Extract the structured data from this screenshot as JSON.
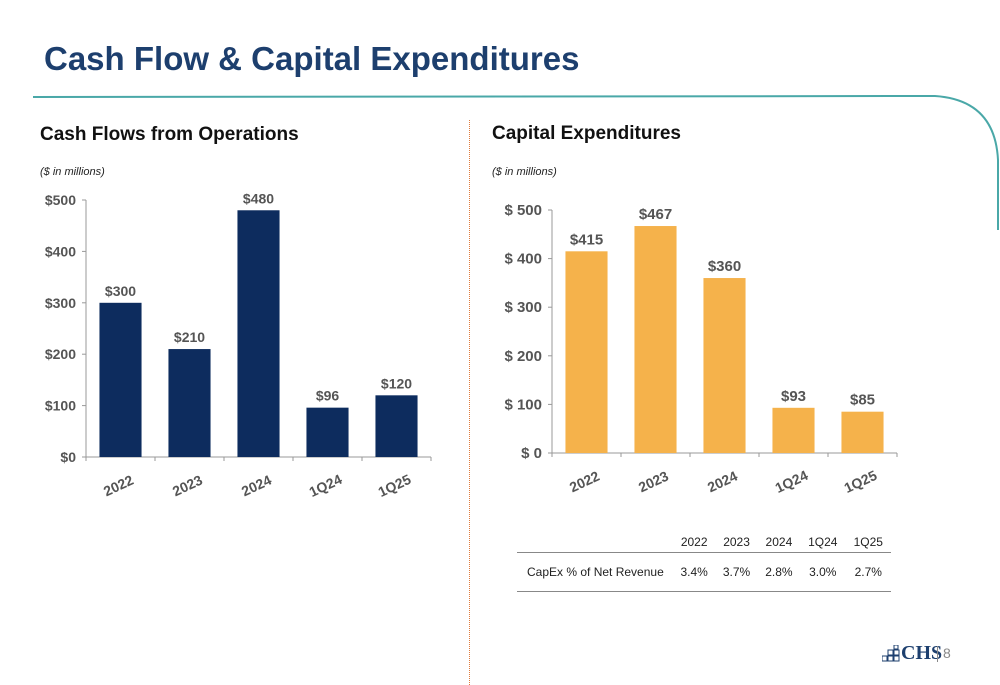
{
  "page": {
    "title": "Cash Flow & Capital Expenditures",
    "page_number": "8",
    "logo_text": "CHS",
    "colors": {
      "title": "#1d3f6e",
      "header_line": "#4aa8a8",
      "cashflow_bar": "#0d2c5e",
      "capex_bar": "#f5b24b"
    }
  },
  "chart_data": [
    {
      "type": "bar",
      "title": "Cash Flows from Operations",
      "subtitle": "($ in millions)",
      "categories": [
        "2022",
        "2023",
        "2024",
        "1Q24",
        "1Q25"
      ],
      "values": [
        300,
        210,
        480,
        96,
        120
      ],
      "value_labels": [
        "$300",
        "$210",
        "$480",
        "$96",
        "$120"
      ],
      "ylim": [
        0,
        500
      ],
      "yticks": [
        0,
        100,
        200,
        300,
        400,
        500
      ],
      "ytick_labels": [
        "$0",
        "$100",
        "$200",
        "$300",
        "$400",
        "$500"
      ],
      "xlabel": "",
      "ylabel": "",
      "grid": false,
      "color": "#0d2c5e"
    },
    {
      "type": "bar",
      "title": "Capital Expenditures",
      "subtitle": "($ in millions)",
      "categories": [
        "2022",
        "2023",
        "2024",
        "1Q24",
        "1Q25"
      ],
      "values": [
        415,
        467,
        360,
        93,
        85
      ],
      "value_labels": [
        "$415",
        "$467",
        "$360",
        "$93",
        "$85"
      ],
      "ylim": [
        0,
        500
      ],
      "yticks": [
        0,
        100,
        200,
        300,
        400,
        500
      ],
      "ytick_labels": [
        "$ 0",
        "$ 100",
        "$ 200",
        "$ 300",
        "$ 400",
        "$ 500"
      ],
      "xlabel": "",
      "ylabel": "",
      "grid": false,
      "color": "#f5b24b"
    },
    {
      "type": "table",
      "columns": [
        "",
        "2022",
        "2023",
        "2024",
        "1Q24",
        "1Q25"
      ],
      "rows": [
        {
          "label": "CapEx % of Net Revenue",
          "values": [
            "3.4%",
            "3.7%",
            "2.8%",
            "3.0%",
            "2.7%"
          ]
        }
      ]
    }
  ]
}
